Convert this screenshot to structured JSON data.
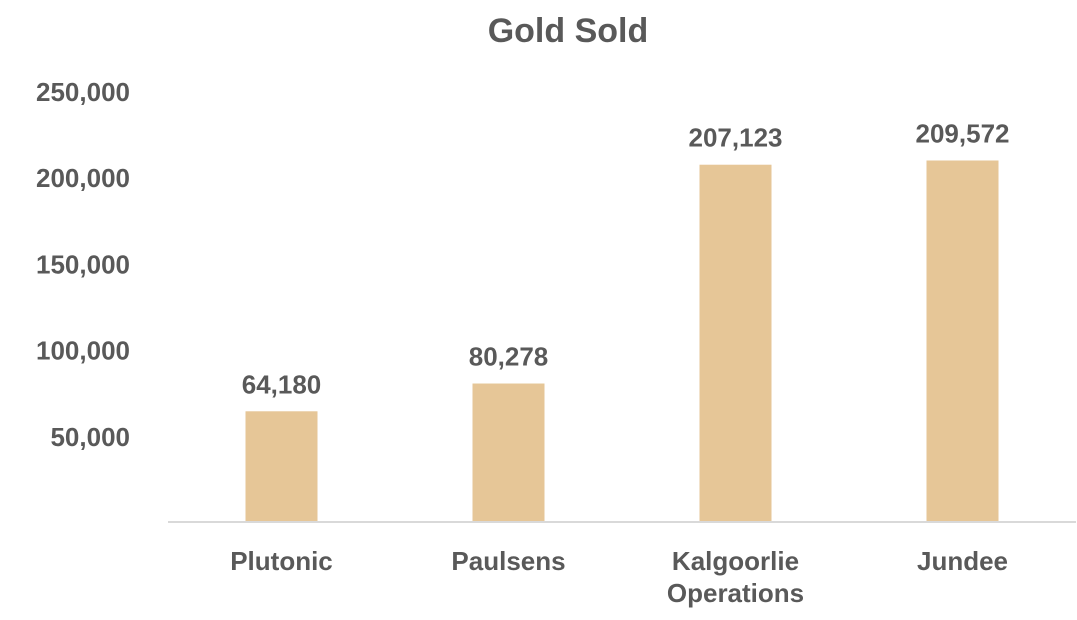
{
  "chart_data": {
    "type": "bar",
    "title": "Gold Sold",
    "xlabel": "",
    "ylabel": "",
    "categories": [
      "Plutonic",
      "Paulsens",
      "Kalgoorlie Operations",
      "Jundee"
    ],
    "values": [
      64180,
      80278,
      207123,
      209572
    ],
    "value_labels": [
      "64,180",
      "80,278",
      "207,123",
      "209,572"
    ],
    "y_ticks": [
      50000,
      100000,
      150000,
      200000,
      250000
    ],
    "y_tick_labels": [
      "50,000",
      "100,000",
      "150,000",
      "200,000",
      "250,000"
    ],
    "ylim": [
      0,
      250000
    ],
    "grid": false,
    "legend": "none",
    "colors": {
      "bar": "#e6c697",
      "axis": "#d9d9d9",
      "text": "#595959"
    }
  }
}
